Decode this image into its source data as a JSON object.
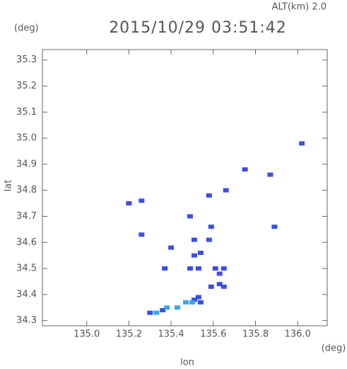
{
  "chart_data": {
    "type": "scatter",
    "title": "2015/10/29 03:51:42",
    "annotation": "ALT(km) 2.0",
    "y_unit": "(deg)",
    "x_unit": "(deg)",
    "x_label": "lon",
    "y_label": "lat",
    "xlim": [
      134.79,
      136.14
    ],
    "ylim": [
      34.28,
      35.34
    ],
    "xticks": [
      {
        "value": 135,
        "label": "135.0"
      },
      135.2,
      135.4,
      135.6,
      135.8,
      {
        "value": 136,
        "label": "136.0"
      }
    ],
    "yticks": [
      34.3,
      34.4,
      34.5,
      34.6,
      34.7,
      34.8,
      34.9,
      {
        "value": 35,
        "label": "35.0"
      },
      35.1,
      35.2,
      35.3
    ],
    "series": [
      {
        "color": "#3c4ee8",
        "x": [
          135.2,
          135.26,
          135.26,
          135.58,
          135.66,
          135.75,
          135.87,
          135.89,
          136.02,
          135.49,
          135.4,
          135.37,
          135.51,
          135.51,
          135.49,
          135.53,
          135.54,
          135.58,
          135.59,
          135.61,
          135.63,
          135.65,
          135.63,
          135.65,
          135.59,
          135.53,
          135.54,
          135.51,
          135.3,
          135.36
        ],
        "y": [
          34.75,
          34.76,
          34.63,
          34.78,
          34.8,
          34.88,
          34.86,
          34.66,
          34.98,
          34.7,
          34.58,
          34.5,
          34.61,
          34.55,
          34.5,
          34.5,
          34.56,
          34.61,
          34.66,
          34.5,
          34.48,
          34.5,
          34.44,
          34.43,
          34.43,
          34.39,
          34.37,
          34.38,
          34.33,
          34.34
        ]
      },
      {
        "color": "#3aa6ee",
        "x": [
          135.33,
          135.38,
          135.43,
          135.47,
          135.5
        ],
        "y": [
          34.33,
          34.35,
          34.35,
          34.37,
          34.37
        ]
      }
    ]
  }
}
